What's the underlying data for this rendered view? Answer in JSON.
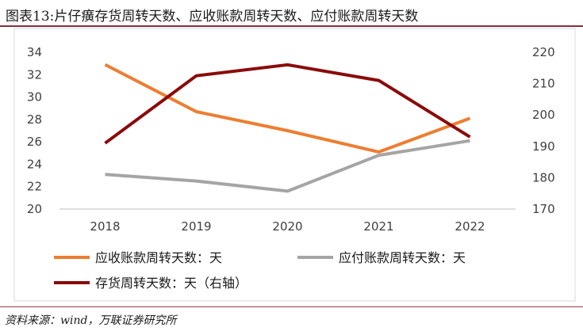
{
  "figure_title": "图表13:片仔癀存货周转天数、应收账款周转天数、应付账款周转天数",
  "source_note": "资料来源：wind，万联证券研究所",
  "chart_data": {
    "type": "line",
    "categories": [
      "2018",
      "2019",
      "2020",
      "2021",
      "2022"
    ],
    "y_left": {
      "ticks": [
        20,
        22,
        24,
        26,
        28,
        30,
        32,
        34
      ],
      "ylim": [
        20,
        34
      ]
    },
    "y_right": {
      "ticks": [
        170,
        180,
        190,
        200,
        210,
        220
      ],
      "ylim": [
        170,
        220
      ]
    },
    "grid": false,
    "legend_position": "bottom",
    "series": [
      {
        "name": "应收账款周转天数：天",
        "axis": "left",
        "color": "#ee7d31",
        "values": [
          32.9,
          28.7,
          27.0,
          25.1,
          28.1
        ]
      },
      {
        "name": "应付账款周转天数：天",
        "axis": "left",
        "color": "#a5a5a5",
        "values": [
          23.1,
          22.5,
          21.6,
          24.8,
          26.1
        ]
      },
      {
        "name": "存货周转天数：天（右轴）",
        "axis": "right",
        "color": "#8b0a0a",
        "values": [
          191,
          212.5,
          216,
          211,
          193
        ]
      }
    ]
  }
}
